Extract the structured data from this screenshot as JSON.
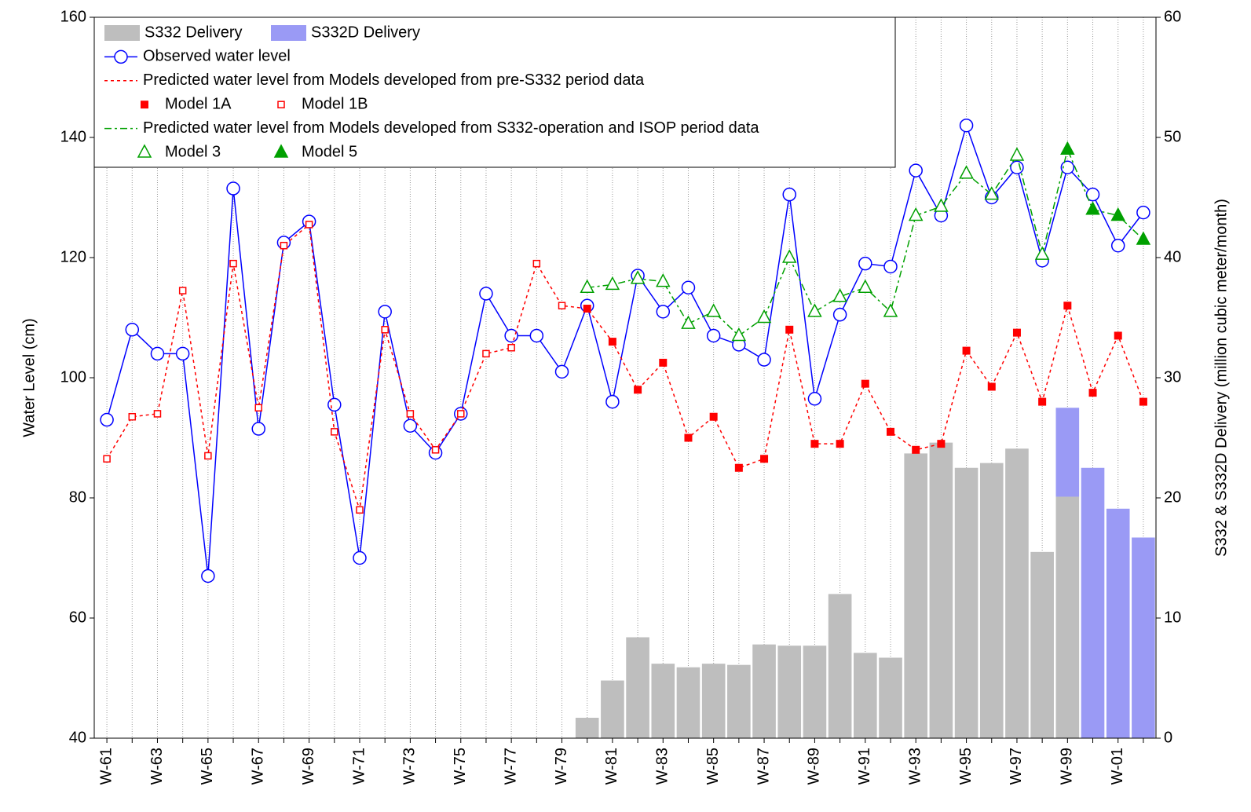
{
  "chart_data": {
    "type": "combo",
    "y_label": "Water Level (cm)",
    "y2_label": "S332 & S332D Delivery (million cubic meter/month)",
    "categories": [
      "W-61",
      null,
      "W-63",
      null,
      "W-65",
      null,
      "W-67",
      null,
      "W-69",
      null,
      "W-71",
      null,
      "W-73",
      null,
      "W-75",
      null,
      "W-77",
      null,
      "W-79",
      null,
      "W-81",
      null,
      "W-83",
      null,
      "W-85",
      null,
      "W-87",
      null,
      "W-89",
      null,
      "W-91",
      null,
      "W-93",
      null,
      "W-95",
      null,
      "W-97",
      null,
      "W-99",
      null,
      "W-01",
      null
    ],
    "ylim": [
      40,
      160
    ],
    "yticks": [
      40,
      60,
      80,
      100,
      120,
      140,
      160
    ],
    "y2lim": [
      0,
      60
    ],
    "y2ticks": [
      0,
      10,
      20,
      30,
      40,
      50,
      60
    ],
    "grid": "x",
    "legend": "top-left",
    "series": [
      {
        "name": "S332 Delivery",
        "kind": "bar",
        "axis": "y2",
        "color": "#bebebe",
        "values": [
          null,
          null,
          null,
          null,
          null,
          null,
          null,
          null,
          null,
          null,
          null,
          null,
          null,
          null,
          null,
          null,
          null,
          null,
          null,
          1.7,
          4.8,
          8.4,
          6.2,
          5.9,
          6.2,
          6.1,
          7.8,
          7.7,
          7.7,
          12.0,
          7.1,
          6.7,
          23.7,
          24.6,
          22.5,
          22.9,
          24.1,
          15.5,
          20.1,
          null,
          null,
          null
        ]
      },
      {
        "name": "S332D Delivery",
        "kind": "bar",
        "axis": "y2",
        "color": "#9a9af5",
        "values": [
          null,
          null,
          null,
          null,
          null,
          null,
          null,
          null,
          null,
          null,
          null,
          null,
          null,
          null,
          null,
          null,
          null,
          null,
          null,
          null,
          null,
          null,
          null,
          null,
          null,
          null,
          null,
          null,
          null,
          null,
          null,
          null,
          null,
          null,
          null,
          null,
          null,
          null,
          7.4,
          22.5,
          19.1,
          16.7
        ]
      },
      {
        "name": "Observed water level",
        "kind": "line",
        "color": "#0000ff",
        "marker": "circle",
        "values": [
          93,
          108,
          104,
          104,
          67,
          131.5,
          91.5,
          122.5,
          126,
          95.5,
          70,
          111,
          92,
          87.5,
          94,
          114,
          107,
          107,
          101,
          112,
          96,
          117,
          111,
          115,
          107,
          105.5,
          103,
          130.5,
          96.5,
          110.5,
          119,
          118.5,
          134.5,
          127,
          142,
          130,
          135,
          119.5,
          135,
          130.5,
          122,
          127.5
        ]
      },
      {
        "name": "Predicted water level from Models developed from pre-S332 period data",
        "kind": "line-group",
        "color": "#ff0000",
        "dash": "dotted",
        "members": [
          {
            "name": "Model 1A",
            "marker": "square",
            "filled": true,
            "values": [
              null,
              null,
              null,
              null,
              null,
              null,
              null,
              null,
              null,
              null,
              null,
              null,
              null,
              null,
              null,
              null,
              null,
              null,
              null,
              111.5,
              106,
              98,
              102.5,
              90,
              93.5,
              85,
              86.5,
              108,
              89,
              89,
              99,
              91,
              88,
              89,
              104.5,
              98.5,
              107.5,
              96,
              112,
              97.5,
              107,
              96
            ]
          },
          {
            "name": "Model 1B",
            "marker": "square",
            "filled": false,
            "values": [
              86.5,
              93.5,
              94,
              114.5,
              87,
              119,
              95,
              122,
              125.5,
              91,
              78,
              108,
              94,
              88,
              94,
              104,
              105,
              119,
              112,
              null,
              null,
              null,
              null,
              null,
              null,
              null,
              null,
              null,
              null,
              null,
              null,
              null,
              null,
              null,
              null,
              null,
              null,
              null,
              null,
              null,
              null,
              null
            ]
          }
        ]
      },
      {
        "name": "Predicted water level from Models developed from S332-operation and ISOP period data",
        "kind": "line-group",
        "color": "#00a000",
        "dash": "dashdot",
        "members": [
          {
            "name": "Model 3",
            "marker": "triangle",
            "filled": false,
            "values": [
              null,
              null,
              null,
              null,
              null,
              null,
              null,
              null,
              null,
              null,
              null,
              null,
              null,
              null,
              null,
              null,
              null,
              null,
              null,
              115,
              115.5,
              116.5,
              116,
              109,
              111,
              107,
              110,
              120,
              111,
              113.5,
              115,
              111,
              127,
              128.5,
              134,
              130.5,
              137,
              120.5,
              null,
              null,
              null,
              null
            ]
          },
          {
            "name": "Model 5",
            "marker": "triangle",
            "filled": true,
            "values": [
              null,
              null,
              null,
              null,
              null,
              null,
              null,
              null,
              null,
              null,
              null,
              null,
              null,
              null,
              null,
              null,
              null,
              null,
              null,
              null,
              null,
              null,
              null,
              null,
              null,
              null,
              null,
              null,
              null,
              null,
              null,
              null,
              null,
              null,
              null,
              null,
              null,
              null,
              138,
              128,
              127,
              123
            ]
          }
        ]
      }
    ]
  }
}
